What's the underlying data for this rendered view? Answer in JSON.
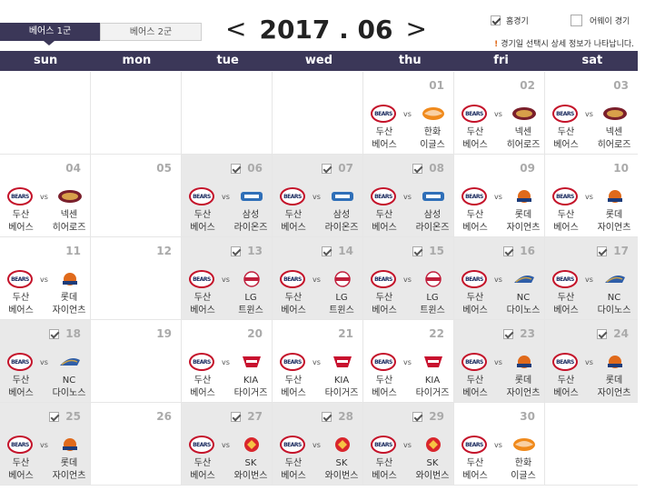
{
  "tabs": [
    "베어스 1군",
    "베어스 2군"
  ],
  "month": {
    "prev": "<",
    "title": "2017 . 06",
    "next": ">"
  },
  "filters": {
    "home": "홈경기",
    "away": "어웨이 경기"
  },
  "notice": "경기일 선택시 상세 정보가 나타납니다.",
  "weekdays": [
    "sun",
    "mon",
    "tue",
    "wed",
    "thu",
    "fri",
    "sat"
  ],
  "colors": {
    "header": "#3b3758",
    "attended_bg": "#e9e9e9",
    "home_ring": "#c4132a"
  },
  "home_team": {
    "line1": "두산",
    "line2": "베어스",
    "logo": "BEARS"
  },
  "vs": "vs",
  "weeks": [
    [
      {
        "day": ""
      },
      {
        "day": ""
      },
      {
        "day": ""
      },
      {
        "day": ""
      },
      {
        "day": "01",
        "attended": false,
        "opp1": "한화",
        "opp2": "이글스",
        "logo": "eagles-logo"
      },
      {
        "day": "02",
        "attended": false,
        "opp1": "넥센",
        "opp2": "히어로즈",
        "logo": "heroes-logo"
      },
      {
        "day": "03",
        "attended": false,
        "opp1": "넥센",
        "opp2": "히어로즈",
        "logo": "heroes-logo"
      }
    ],
    [
      {
        "day": "04",
        "attended": false,
        "opp1": "넥센",
        "opp2": "히어로즈",
        "logo": "heroes-logo"
      },
      {
        "day": "05"
      },
      {
        "day": "06",
        "attended": true,
        "opp1": "삼성",
        "opp2": "라이온즈",
        "logo": "lions-logo"
      },
      {
        "day": "07",
        "attended": true,
        "opp1": "삼성",
        "opp2": "라이온즈",
        "logo": "lions-logo"
      },
      {
        "day": "08",
        "attended": true,
        "opp1": "삼성",
        "opp2": "라이온즈",
        "logo": "lions-logo"
      },
      {
        "day": "09",
        "attended": false,
        "opp1": "롯데",
        "opp2": "자이언츠",
        "logo": "giants-logo"
      },
      {
        "day": "10",
        "attended": false,
        "opp1": "롯데",
        "opp2": "자이언츠",
        "logo": "giants-logo"
      }
    ],
    [
      {
        "day": "11",
        "attended": false,
        "opp1": "롯데",
        "opp2": "자이언츠",
        "logo": "giants-logo"
      },
      {
        "day": "12"
      },
      {
        "day": "13",
        "attended": true,
        "opp1": "LG",
        "opp2": "트윈스",
        "logo": "twins-logo"
      },
      {
        "day": "14",
        "attended": true,
        "opp1": "LG",
        "opp2": "트윈스",
        "logo": "twins-logo"
      },
      {
        "day": "15",
        "attended": true,
        "opp1": "LG",
        "opp2": "트윈스",
        "logo": "twins-logo"
      },
      {
        "day": "16",
        "attended": true,
        "opp1": "NC",
        "opp2": "다이노스",
        "logo": "dinos-logo"
      },
      {
        "day": "17",
        "attended": true,
        "opp1": "NC",
        "opp2": "다이노스",
        "logo": "dinos-logo"
      }
    ],
    [
      {
        "day": "18",
        "attended": true,
        "opp1": "NC",
        "opp2": "다이노스",
        "logo": "dinos-logo"
      },
      {
        "day": "19"
      },
      {
        "day": "20",
        "attended": false,
        "opp1": "KIA",
        "opp2": "타이거즈",
        "logo": "tigers-logo"
      },
      {
        "day": "21",
        "attended": false,
        "opp1": "KIA",
        "opp2": "타이거즈",
        "logo": "tigers-logo"
      },
      {
        "day": "22",
        "attended": false,
        "opp1": "KIA",
        "opp2": "타이거즈",
        "logo": "tigers-logo"
      },
      {
        "day": "23",
        "attended": true,
        "opp1": "롯데",
        "opp2": "자이언츠",
        "logo": "giants-logo"
      },
      {
        "day": "24",
        "attended": true,
        "opp1": "롯데",
        "opp2": "자이언츠",
        "logo": "giants-logo"
      }
    ],
    [
      {
        "day": "25",
        "attended": true,
        "opp1": "롯데",
        "opp2": "자이언츠",
        "logo": "giants-logo"
      },
      {
        "day": "26"
      },
      {
        "day": "27",
        "attended": true,
        "opp1": "SK",
        "opp2": "와이번스",
        "logo": "wyverns-logo"
      },
      {
        "day": "28",
        "attended": true,
        "opp1": "SK",
        "opp2": "와이번스",
        "logo": "wyverns-logo"
      },
      {
        "day": "29",
        "attended": true,
        "opp1": "SK",
        "opp2": "와이번스",
        "logo": "wyverns-logo"
      },
      {
        "day": "30",
        "attended": false,
        "opp1": "한화",
        "opp2": "이글스",
        "logo": "eagles-logo"
      },
      {
        "day": ""
      }
    ]
  ]
}
